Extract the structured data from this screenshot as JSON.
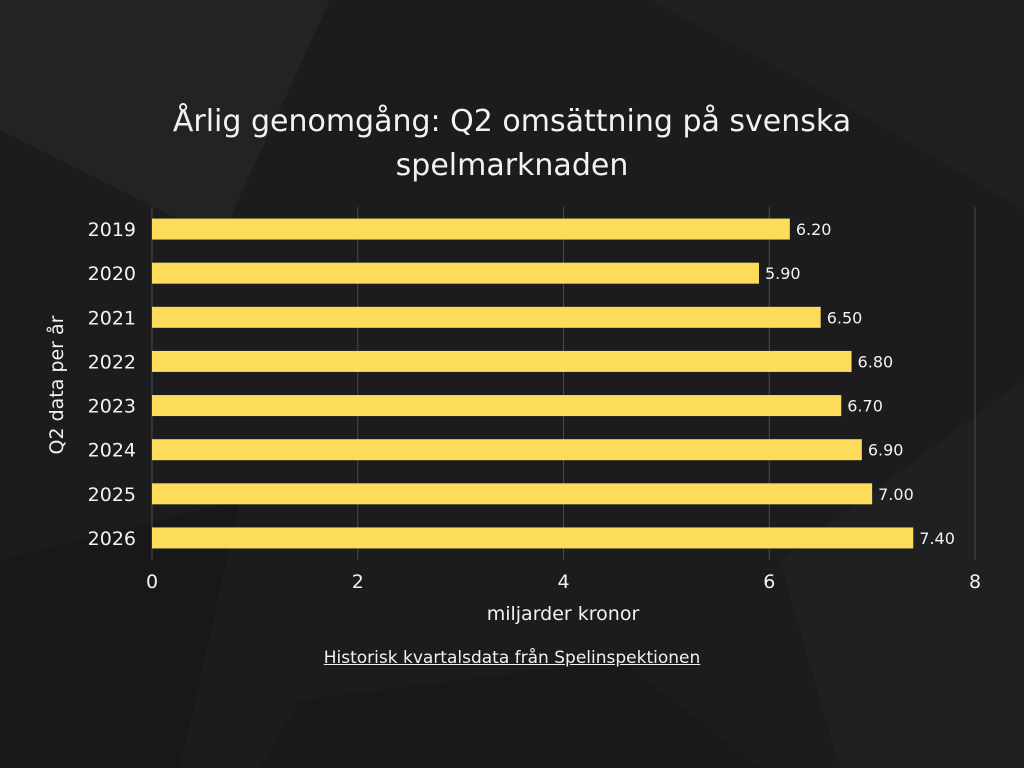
{
  "chart_data": {
    "type": "bar",
    "orientation": "horizontal",
    "title": "Årlig genomgång: Q2 omsättning på svenska spelmarknaden",
    "xlabel": "miljarder kronor",
    "ylabel": "Q2 data per år",
    "categories": [
      "2019",
      "2020",
      "2021",
      "2022",
      "2023",
      "2024",
      "2025",
      "2026"
    ],
    "values": [
      6.2,
      5.9,
      6.5,
      6.8,
      6.7,
      6.9,
      7.0,
      7.4
    ],
    "data_labels": [
      "6.20",
      "5.90",
      "6.50",
      "6.80",
      "6.70",
      "6.90",
      "7.00",
      "7.40"
    ],
    "xlim": [
      0,
      8
    ],
    "xticks": [
      "0",
      "2",
      "4",
      "6",
      "8"
    ],
    "grid": true,
    "legend": "none",
    "bar_color": "#fddc5c",
    "background_color": "#1c1c1e",
    "text_color": "#f2f2f2"
  },
  "footer": {
    "source_text": "Historisk kvartalsdata från Spelinspektionen"
  }
}
